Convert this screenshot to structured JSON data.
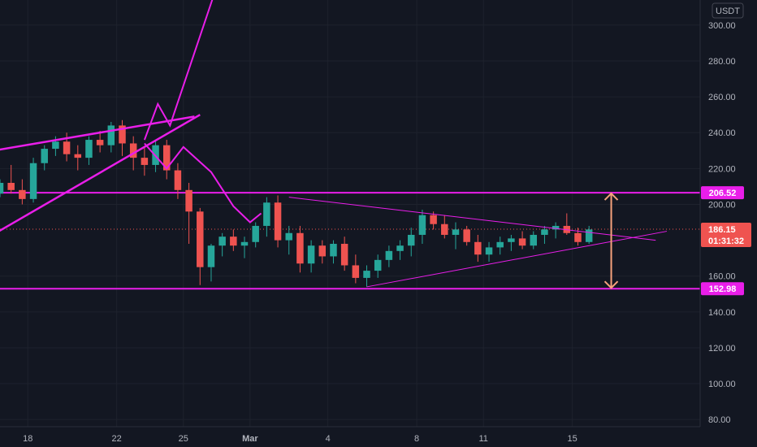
{
  "colors": {
    "background": "#131722",
    "grid": "#1e222d",
    "axis_text": "#b2b5be",
    "up": "#26a69a",
    "down": "#ef5350",
    "magenta": "#e91ee9",
    "red_line": "#e8232a",
    "blue_line": "#3f8fd8",
    "arrow": "#f6a27c"
  },
  "currency_label": "USDT",
  "price_tag": {
    "value": "186.15",
    "countdown": "01:31:32"
  },
  "level_tags": [
    "206.52",
    "152.98"
  ],
  "chart_data": {
    "type": "candlestick",
    "y_axis": {
      "ticks": [
        "300.00",
        "280.00",
        "260.00",
        "240.00",
        "220.00",
        "200.00",
        "160.00",
        "140.00",
        "120.00",
        "100.00",
        "80.00"
      ],
      "range": [
        76,
        314
      ]
    },
    "x_axis": {
      "tick_labels": [
        "18",
        "22",
        "25",
        "Mar",
        "4",
        "8",
        "11",
        "15"
      ],
      "range": [
        0,
        63
      ],
      "tick_positions": [
        2.5,
        10.5,
        16.5,
        22.5,
        29.5,
        37.5,
        43.5,
        51.5
      ]
    },
    "horizontal_levels": [
      206.52,
      152.98
    ],
    "last_price": 186.15,
    "series": [
      {
        "ohlc": [
          [
            206,
            214,
            204,
            212
          ],
          [
            212,
            222,
            206,
            208
          ],
          [
            208,
            214,
            200,
            203
          ],
          [
            203,
            226,
            201,
            223
          ],
          [
            223,
            233,
            219,
            231
          ],
          [
            231,
            238,
            227,
            235
          ],
          [
            235,
            240,
            224,
            228
          ],
          [
            228,
            233,
            219,
            226
          ],
          [
            226,
            238,
            222,
            236
          ],
          [
            236,
            241,
            229,
            233
          ],
          [
            233,
            246,
            229,
            244
          ],
          [
            244,
            247,
            227,
            234
          ],
          [
            234,
            238,
            219,
            226
          ],
          [
            226,
            232,
            216,
            222
          ],
          [
            222,
            236,
            218,
            233
          ],
          [
            233,
            236,
            214,
            219
          ],
          [
            219,
            223,
            203,
            208
          ],
          [
            208,
            212,
            178,
            196
          ],
          [
            196,
            198,
            155,
            165
          ],
          [
            165,
            178,
            157,
            177
          ],
          [
            177,
            184,
            171,
            182
          ],
          [
            182,
            186,
            174,
            177
          ],
          [
            177,
            182,
            170,
            179
          ],
          [
            179,
            190,
            176,
            188
          ],
          [
            188,
            204,
            182,
            201
          ],
          [
            201,
            205,
            176,
            180
          ],
          [
            180,
            188,
            172,
            184
          ],
          [
            184,
            188,
            162,
            167
          ],
          [
            167,
            180,
            162,
            177
          ],
          [
            177,
            180,
            167,
            171
          ],
          [
            171,
            180,
            167,
            178
          ],
          [
            178,
            182,
            163,
            166
          ],
          [
            166,
            172,
            156,
            159
          ],
          [
            159,
            166,
            154,
            163
          ],
          [
            163,
            172,
            159,
            169
          ],
          [
            169,
            177,
            165,
            174
          ],
          [
            174,
            180,
            169,
            177
          ],
          [
            177,
            187,
            171,
            183
          ],
          [
            183,
            197,
            178,
            194
          ],
          [
            194,
            196,
            186,
            189
          ],
          [
            189,
            194,
            181,
            183
          ],
          [
            183,
            190,
            175,
            186
          ],
          [
            186,
            188,
            177,
            179
          ],
          [
            179,
            183,
            168,
            172
          ],
          [
            172,
            179,
            168,
            176
          ],
          [
            176,
            182,
            172,
            179
          ],
          [
            179,
            183,
            174,
            181
          ],
          [
            181,
            185,
            175,
            177
          ],
          [
            177,
            185,
            175,
            183
          ],
          [
            183,
            188,
            178,
            186
          ],
          [
            186,
            190,
            181,
            188
          ],
          [
            188,
            195,
            183,
            184
          ],
          [
            184,
            187,
            177,
            179
          ],
          [
            179,
            188,
            178,
            186
          ]
        ]
      }
    ],
    "drawings": [
      {
        "kind": "line",
        "color": "red",
        "points": [
          [
            -1.5,
            229
          ],
          [
            17.5,
            249
          ]
        ]
      },
      {
        "kind": "line",
        "color": "red",
        "points": [
          [
            -1.5,
            180
          ],
          [
            18,
            250
          ]
        ]
      },
      {
        "kind": "polyline",
        "color": "magenta",
        "points": [
          [
            13,
            236
          ],
          [
            14.2,
            256
          ],
          [
            15.3,
            244
          ],
          [
            19.2,
            316
          ]
        ]
      },
      {
        "kind": "polyline",
        "color": "magenta",
        "points": [
          [
            13,
            234
          ],
          [
            15,
            220
          ],
          [
            16.5,
            232
          ],
          [
            19,
            218
          ],
          [
            21,
            199
          ],
          [
            22.5,
            190
          ],
          [
            23.5,
            195
          ]
        ]
      },
      {
        "kind": "line",
        "color": "blue",
        "points": [
          [
            26,
            204
          ],
          [
            59,
            180
          ]
        ]
      },
      {
        "kind": "line",
        "color": "blue",
        "points": [
          [
            33,
            154
          ],
          [
            60,
            185
          ]
        ]
      },
      {
        "kind": "double_arrow",
        "color": "arrow",
        "x": 55,
        "range": [
          206.52,
          152.98
        ]
      }
    ]
  }
}
